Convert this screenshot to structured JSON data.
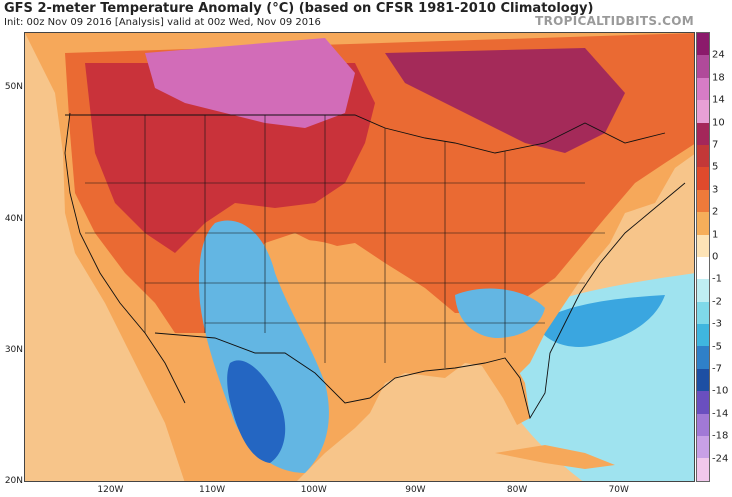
{
  "header": {
    "title": "GFS 2-meter Temperature Anomaly (°C) (based on CFSR 1981-2010 Climatology)",
    "subtitle": "Init: 00z Nov 09 2016   [Analysis]   valid at 00z Wed, Nov 09 2016",
    "brand": "TROPICALTIDBITS.COM"
  },
  "axes": {
    "latitudes": [
      {
        "value": 50,
        "label": "50N"
      },
      {
        "value": 40,
        "label": "40N"
      },
      {
        "value": 30,
        "label": "30N"
      },
      {
        "value": 20,
        "label": "20N"
      }
    ],
    "longitudes": [
      {
        "value": -120,
        "label": "120W"
      },
      {
        "value": -110,
        "label": "110W"
      },
      {
        "value": -100,
        "label": "100W"
      },
      {
        "value": -90,
        "label": "90W"
      },
      {
        "value": -80,
        "label": "80W"
      },
      {
        "value": -70,
        "label": "70W"
      }
    ]
  },
  "colorbar": {
    "ticks": [
      "24",
      "18",
      "14",
      "10",
      "7",
      "5",
      "3",
      "2",
      "1",
      "0",
      "-1",
      "-2",
      "-3",
      "-5",
      "-7",
      "-10",
      "-14",
      "-18",
      "-24"
    ],
    "colors": [
      "#8b1a6b",
      "#b04a9a",
      "#d77cc6",
      "#e7a0d6",
      "#a4275a",
      "#c33838",
      "#e04a2c",
      "#ee7a3a",
      "#f6ae5a",
      "#fde3b6",
      "#ffffff",
      "#bfeef3",
      "#7fd9e9",
      "#3fb6df",
      "#2f80c8",
      "#1d4fa3",
      "#6a4fbf",
      "#a179d6",
      "#c8a0e6",
      "#f1c8ec"
    ]
  },
  "map_colors": {
    "ocean_warm": "#f7c58a",
    "ocean_cool": "#9fe3ef",
    "ocean_cold": "#3aa6e0",
    "land_hot": "#c9323a",
    "land_very_hot": "#a42a59",
    "land_extreme": "#d26cb8",
    "land_warm": "#ea6a33",
    "land_mild": "#f6a85a",
    "land_cool": "#63b6e3",
    "land_cold": "#2466c2",
    "border": "#111111"
  }
}
